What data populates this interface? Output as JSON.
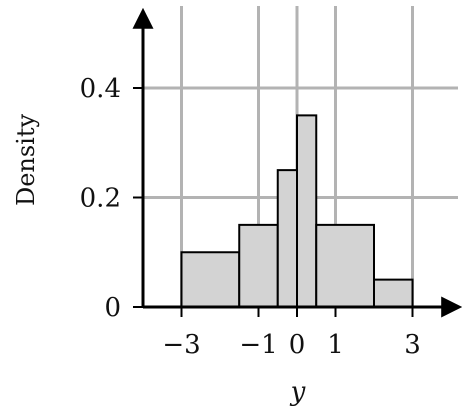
{
  "chart_data": {
    "type": "bar",
    "subtype": "histogram",
    "xlabel": "y",
    "ylabel": "Density",
    "xlim": [
      -4,
      4
    ],
    "ylim": [
      0,
      0.5
    ],
    "xticks": [
      -3,
      -1,
      0,
      1,
      3
    ],
    "xtick_labels": [
      "−3",
      "−1",
      "0",
      "1",
      "3"
    ],
    "yticks": [
      0,
      0.2,
      0.4
    ],
    "ytick_labels": [
      "0",
      "0.2",
      "0.4"
    ],
    "grid": true,
    "bins": [
      {
        "x0": -3,
        "x1": -1.5,
        "value": 0.1
      },
      {
        "x0": -1.5,
        "x1": -0.5,
        "value": 0.15
      },
      {
        "x0": -0.5,
        "x1": 0,
        "value": 0.25
      },
      {
        "x0": 0,
        "x1": 0.5,
        "value": 0.35
      },
      {
        "x0": 0.5,
        "x1": 2,
        "value": 0.15
      },
      {
        "x0": 2,
        "x1": 3,
        "value": 0.05
      }
    ]
  },
  "colors": {
    "bar_fill": "#d3d3d3",
    "bar_stroke": "#000000",
    "grid": "#b3b3b3",
    "axis": "#000000"
  }
}
